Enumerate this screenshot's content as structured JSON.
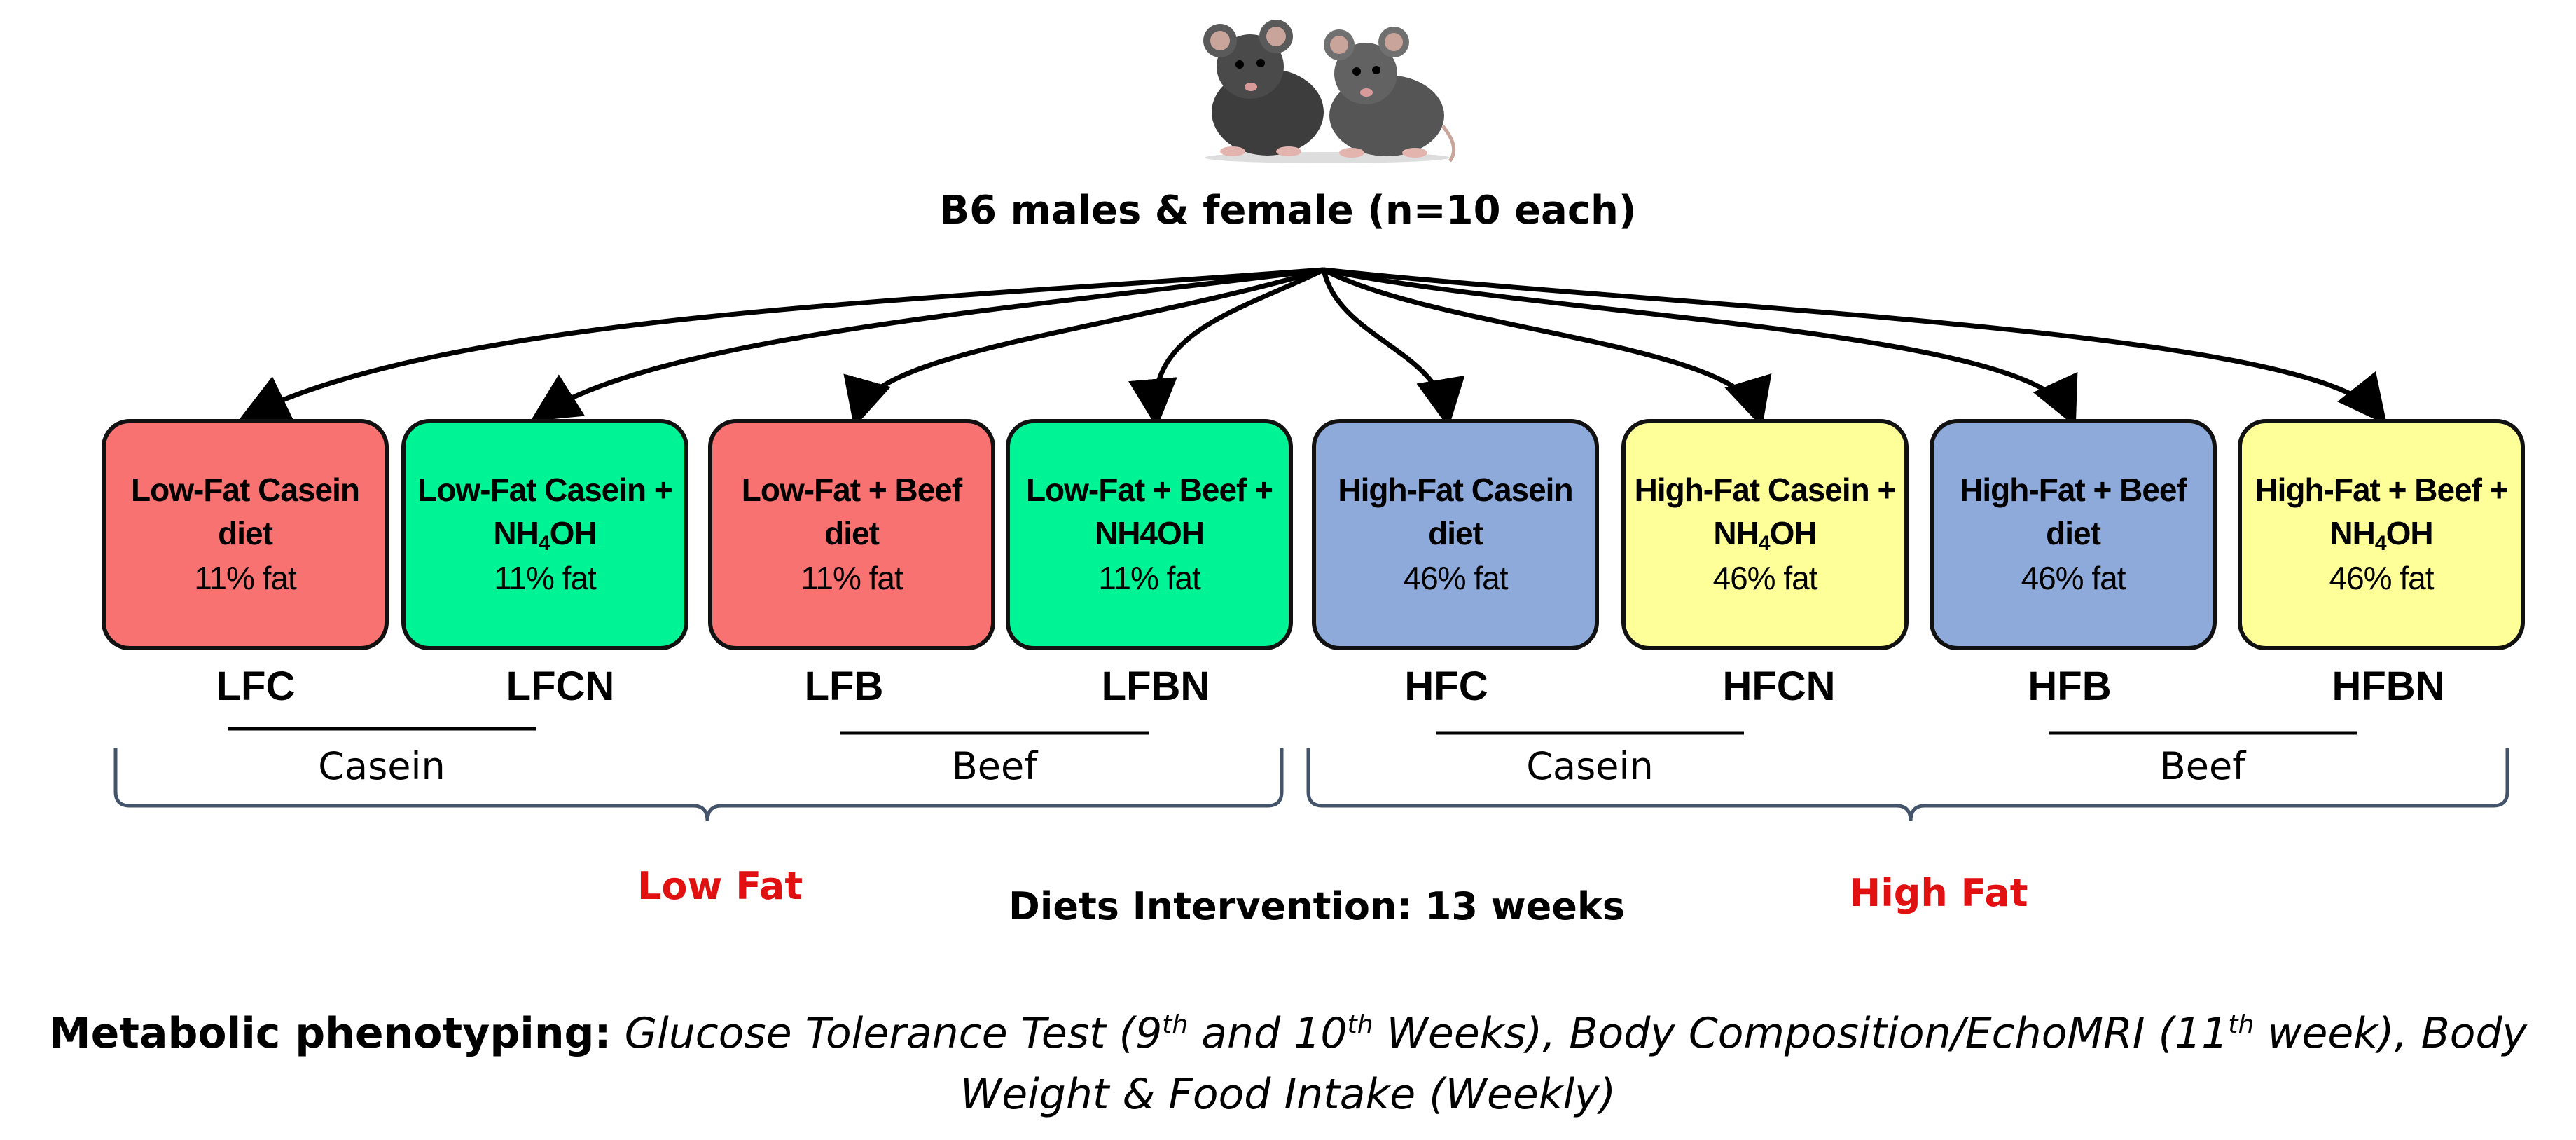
{
  "title": "B6 males & female (n=10 each)",
  "colors": {
    "low_fat_plain": "#f87272",
    "low_fat_nh": "#00f496",
    "high_fat_plain": "#8eaadb",
    "high_fat_nh": "#ffff99",
    "red_label": "#e11111"
  },
  "boxes": [
    {
      "line1": "Low-Fat Casein",
      "line2": "diet",
      "fat": "11% fat",
      "abbr": "LFC"
    },
    {
      "line1": "Low-Fat Casein +",
      "line2_pre": "NH",
      "line2_sub": "4",
      "line2_post": "OH",
      "fat": "11% fat",
      "abbr": "LFCN"
    },
    {
      "line1": "Low-Fat + Beef",
      "line2": "diet",
      "fat": "11% fat",
      "abbr": "LFB"
    },
    {
      "line1": "Low-Fat + Beef +",
      "line2": "NH4OH",
      "fat": "11% fat",
      "abbr": "LFBN"
    },
    {
      "line1": "High-Fat Casein",
      "line2": "diet",
      "fat": "46% fat",
      "abbr": "HFC"
    },
    {
      "line1": "High-Fat Casein +",
      "line2_pre": "NH",
      "line2_sub": "4",
      "line2_post": "OH",
      "fat": "46% fat",
      "abbr": "HFCN"
    },
    {
      "line1": "High-Fat + Beef",
      "line2": "diet",
      "fat": "46% fat",
      "abbr": "HFB"
    },
    {
      "line1": "High-Fat + Beef +",
      "line2_pre": "NH",
      "line2_sub": "4",
      "line2_post": "OH",
      "fat": "46% fat",
      "abbr": "HFBN"
    }
  ],
  "groups": [
    "Casein",
    "Beef",
    "Casein",
    "Beef"
  ],
  "fat_groups": {
    "low": "Low Fat",
    "high": "High Fat"
  },
  "intervention": "Diets Intervention: 13 weeks",
  "footer": {
    "bold_label": "Metabolic phenotyping:",
    "p1": " Glucose Tolerance Test (9",
    "sup1": "th",
    "p2": " and 10",
    "sup2": "th",
    "p3": " Weeks), Body Composition/EchoMRI (11",
    "sup3": "th",
    "p4": " week), Body",
    "line2": "Weight & Food Intake (Weekly)"
  }
}
